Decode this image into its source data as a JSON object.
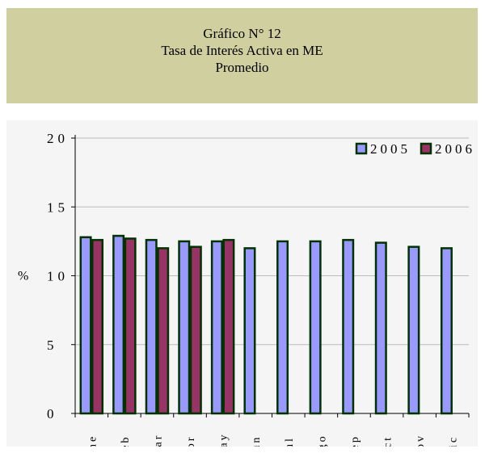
{
  "header": {
    "line1": "Gráfico N° 12",
    "line2": "Tasa de Interés Activa en ME",
    "line3": "Promedio"
  },
  "colors": {
    "series_2005": "#9999ff",
    "series_2006": "#993366",
    "bar_border": "#003300",
    "title_bg": "#d0cfa0",
    "plot_bg": "#f5f5f5",
    "grid": "#bbbbbb"
  },
  "chart_data": {
    "type": "bar",
    "categories": [
      "ene",
      "feb",
      "mar",
      "abr",
      "may",
      "jun",
      "jul",
      "ago",
      "sep",
      "oct",
      "nov",
      "dic"
    ],
    "series": [
      {
        "name": "2005",
        "values": [
          12.8,
          12.9,
          12.6,
          12.5,
          12.5,
          12.0,
          12.5,
          12.5,
          12.6,
          12.4,
          12.1,
          12.0
        ]
      },
      {
        "name": "2006",
        "values": [
          12.6,
          12.7,
          12.0,
          12.1,
          12.6,
          null,
          null,
          null,
          null,
          null,
          null,
          null
        ]
      }
    ],
    "ylabel": "%",
    "ylim": [
      0,
      20
    ],
    "yticks": [
      0,
      5,
      10,
      15,
      20
    ],
    "grid": true,
    "legend": "top-right"
  }
}
